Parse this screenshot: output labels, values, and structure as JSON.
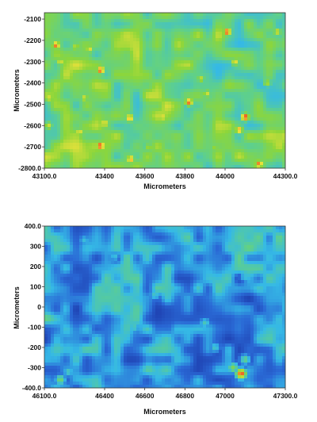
{
  "chart_data": [
    {
      "type": "heatmap",
      "title": "",
      "xlabel": "Micrometers",
      "ylabel": "Micrometers",
      "xlim": [
        43100.0,
        44300.0
      ],
      "ylim": [
        -2800.0,
        -2070.0
      ],
      "x_ticks": [
        43100.0,
        43400,
        43600,
        43800,
        44000,
        44300.0
      ],
      "x_tick_labels": [
        "43100.0",
        "43400",
        "43600",
        "43800",
        "44000",
        "44300.0"
      ],
      "y_ticks": [
        -2100,
        -2200,
        -2300,
        -2400,
        -2500,
        -2600,
        -2700,
        -2800.0
      ],
      "y_tick_labels": [
        "-2100",
        "-2200",
        "-2300",
        "-2400",
        "-2500",
        "-2600",
        "-2700",
        "-2800.0"
      ],
      "colormap": [
        "#1e3fb0",
        "#2a6ad6",
        "#35b9e6",
        "#5fd08a",
        "#8cd63a",
        "#f2e23a",
        "#e93a1f"
      ],
      "baseline_level": 0.55,
      "hotspots": [
        {
          "x": 43158,
          "y": -2223,
          "intensity": 0.95
        },
        {
          "x": 43256,
          "y": -2231,
          "intensity": 0.75
        },
        {
          "x": 43325,
          "y": -2240,
          "intensity": 0.8
        },
        {
          "x": 43380,
          "y": -2340,
          "intensity": 0.97
        },
        {
          "x": 43180,
          "y": -2300,
          "intensity": 0.8
        },
        {
          "x": 43300,
          "y": -2470,
          "intensity": 0.78
        },
        {
          "x": 43400,
          "y": -2590,
          "intensity": 0.85
        },
        {
          "x": 43275,
          "y": -2630,
          "intensity": 0.82
        },
        {
          "x": 43380,
          "y": -2695,
          "intensity": 1.0
        },
        {
          "x": 43525,
          "y": -2565,
          "intensity": 0.9
        },
        {
          "x": 43530,
          "y": -2758,
          "intensity": 0.9
        },
        {
          "x": 43560,
          "y": -2320,
          "intensity": 0.7
        },
        {
          "x": 43690,
          "y": -2560,
          "intensity": 0.82
        },
        {
          "x": 43620,
          "y": -2700,
          "intensity": 0.72
        },
        {
          "x": 43820,
          "y": -2490,
          "intensity": 0.96
        },
        {
          "x": 43760,
          "y": -2220,
          "intensity": 0.68
        },
        {
          "x": 43880,
          "y": -2380,
          "intensity": 0.75
        },
        {
          "x": 43910,
          "y": -2450,
          "intensity": 0.78
        },
        {
          "x": 44010,
          "y": -2160,
          "intensity": 0.98
        },
        {
          "x": 44050,
          "y": -2300,
          "intensity": 0.82
        },
        {
          "x": 44100,
          "y": -2560,
          "intensity": 1.0
        },
        {
          "x": 44070,
          "y": -2620,
          "intensity": 0.9
        },
        {
          "x": 44210,
          "y": -2400,
          "intensity": 0.72
        },
        {
          "x": 44260,
          "y": -2160,
          "intensity": 0.78
        },
        {
          "x": 44170,
          "y": -2780,
          "intensity": 0.95
        },
        {
          "x": 43950,
          "y": -2700,
          "intensity": 0.7
        },
        {
          "x": 43125,
          "y": -2470,
          "intensity": 0.8
        },
        {
          "x": 43120,
          "y": -2600,
          "intensity": 0.78
        }
      ]
    },
    {
      "type": "heatmap",
      "title": "",
      "xlabel": "Micrometers",
      "ylabel": "Micrometers",
      "xlim": [
        46100.0,
        47300.0
      ],
      "ylim": [
        -400.0,
        400.0
      ],
      "x_ticks": [
        46100.0,
        46400,
        46600,
        46800,
        47000,
        47300.0
      ],
      "x_tick_labels": [
        "46100.0",
        "46400",
        "46600",
        "46800",
        "47000",
        "47300.0"
      ],
      "y_ticks": [
        400.0,
        300,
        200,
        100,
        0,
        -100,
        -200,
        -300,
        -400.0
      ],
      "y_tick_labels": [
        "400.0",
        "300",
        "200",
        "100",
        "0",
        "-100",
        "-200",
        "-300",
        "-400.0"
      ],
      "colormap": [
        "#1e3fb0",
        "#2a6ad6",
        "#35b9e6",
        "#5fd08a",
        "#8cd63a",
        "#f2e23a",
        "#e93a1f"
      ],
      "baseline_level": 0.26,
      "hotspots": [
        {
          "x": 47080,
          "y": -330,
          "intensity": 1.0
        },
        {
          "x": 47040,
          "y": -300,
          "intensity": 0.6
        },
        {
          "x": 47100,
          "y": -260,
          "intensity": 0.5
        },
        {
          "x": 46180,
          "y": -360,
          "intensity": 0.55
        },
        {
          "x": 46220,
          "y": -320,
          "intensity": 0.42
        },
        {
          "x": 46550,
          "y": -100,
          "intensity": 0.42
        },
        {
          "x": 46650,
          "y": 60,
          "intensity": 0.4
        },
        {
          "x": 46900,
          "y": -80,
          "intensity": 0.42
        },
        {
          "x": 47100,
          "y": 150,
          "intensity": 0.38
        },
        {
          "x": 46950,
          "y": -200,
          "intensity": 0.4
        },
        {
          "x": 46450,
          "y": 250,
          "intensity": 0.36
        },
        {
          "x": 46300,
          "y": 330,
          "intensity": 0.36
        }
      ]
    }
  ]
}
